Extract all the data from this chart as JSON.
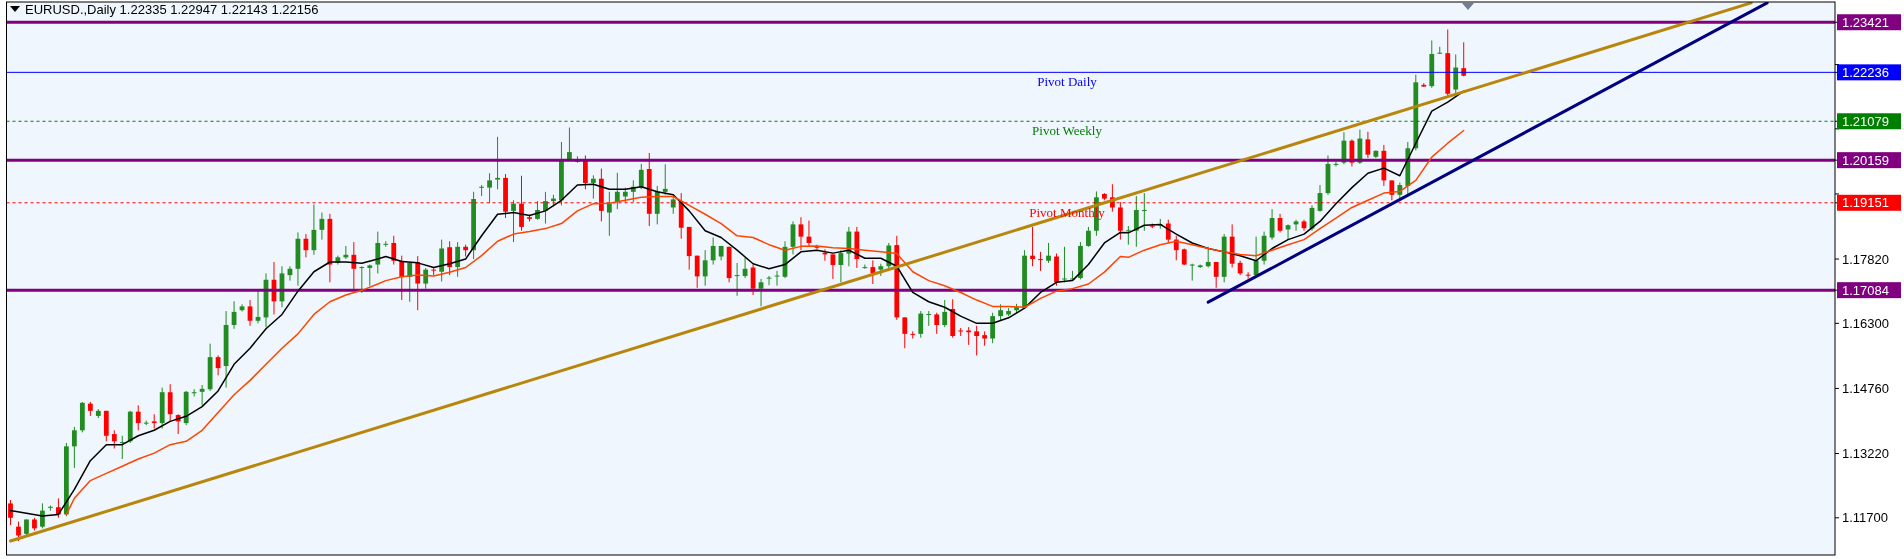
{
  "chart_data": {
    "type": "candlestick",
    "title": "EURUSD.,Daily  1.22335 1.22947 1.22143 1.22156",
    "categories": [
      null,
      null,
      null,
      null,
      null,
      null,
      null,
      null,
      null,
      null,
      null,
      null,
      null,
      null,
      null,
      null,
      null,
      null,
      null,
      null,
      null,
      null,
      null,
      null,
      null,
      null,
      null,
      null,
      null,
      null,
      null,
      null,
      null,
      null,
      null,
      null,
      null,
      null,
      null,
      null,
      null,
      null,
      null,
      null,
      null,
      null,
      null,
      null,
      null,
      null,
      null,
      null,
      null,
      null,
      null,
      null,
      null,
      null,
      null,
      null,
      null,
      null,
      null,
      null,
      null,
      null,
      null,
      null,
      null,
      null,
      null,
      null,
      null,
      null,
      null,
      null,
      null,
      null,
      null,
      null,
      null,
      null,
      null,
      null,
      null,
      null,
      null,
      null,
      null,
      null,
      null,
      null,
      null,
      null,
      null,
      null,
      null,
      null,
      null,
      null,
      null,
      null,
      null,
      null,
      null,
      null,
      null,
      null,
      null,
      null,
      null,
      null,
      null,
      null,
      null,
      null,
      null,
      null,
      null,
      null,
      null,
      null,
      null,
      null,
      null,
      null,
      null,
      null,
      null,
      null,
      null,
      null,
      null,
      null,
      null,
      null,
      null,
      null,
      null,
      null,
      null,
      null,
      null,
      null,
      null,
      null,
      null,
      null,
      null,
      null,
      null,
      null,
      null,
      null,
      null,
      null,
      null,
      null,
      null,
      null,
      null,
      null,
      null,
      null,
      null,
      null,
      null,
      null,
      null,
      null,
      null,
      null,
      null,
      null,
      null,
      null,
      null,
      null,
      null,
      null,
      null,
      null,
      null,
      null,
      null,
      null,
      null,
      null,
      null,
      null,
      null,
      null,
      null,
      null,
      null,
      null,
      null,
      null,
      null,
      null,
      null,
      null,
      null,
      null,
      null,
      null,
      null,
      null,
      null,
      null,
      null,
      null,
      null,
      null,
      null,
      null,
      null,
      null,
      null,
      null,
      null,
      null,
      null,
      null,
      null,
      null,
      null,
      null,
      null
    ],
    "ohlc": [
      [
        1.1204,
        1.1212,
        1.1153,
        1.117
      ],
      [
        1.1149,
        1.1161,
        1.1115,
        1.1128
      ],
      [
        1.1132,
        1.1166,
        1.1128,
        1.1166
      ],
      [
        1.1166,
        1.117,
        1.114,
        1.1145
      ],
      [
        1.1149,
        1.1204,
        1.1145,
        1.1187
      ],
      [
        1.1195,
        1.1199,
        1.1187,
        1.1196
      ],
      [
        1.1195,
        1.1216,
        1.117,
        1.1178
      ],
      [
        1.1178,
        1.1347,
        1.1174,
        1.1339
      ],
      [
        1.1339,
        1.1385,
        1.1288,
        1.1377
      ],
      [
        1.1377,
        1.1444,
        1.1372,
        1.1442
      ],
      [
        1.144,
        1.1444,
        1.1411,
        1.1423
      ],
      [
        1.1411,
        1.1427,
        1.1406,
        1.1423
      ],
      [
        1.1423,
        1.1423,
        1.1351,
        1.1364
      ],
      [
        1.1368,
        1.1377,
        1.1334,
        1.1351
      ],
      [
        1.1347,
        1.1364,
        1.1309,
        1.1349
      ],
      [
        1.1351,
        1.1423,
        1.1347,
        1.1421
      ],
      [
        1.1421,
        1.1436,
        1.1377,
        1.1394
      ],
      [
        1.1394,
        1.14,
        1.1389,
        1.1395
      ],
      [
        1.1398,
        1.1415,
        1.1381,
        1.1394
      ],
      [
        1.1394,
        1.1478,
        1.1381,
        1.1467
      ],
      [
        1.1467,
        1.1486,
        1.1398,
        1.1415
      ],
      [
        1.1413,
        1.1415,
        1.1368,
        1.1398
      ],
      [
        1.1394,
        1.147,
        1.1389,
        1.1468
      ],
      [
        1.1466,
        1.1474,
        1.1457,
        1.1467
      ],
      [
        1.1468,
        1.1484,
        1.1436,
        1.1475
      ],
      [
        1.1474,
        1.1582,
        1.147,
        1.155
      ],
      [
        1.155,
        1.1554,
        1.1507,
        1.1524
      ],
      [
        1.1529,
        1.1659,
        1.1478,
        1.1626
      ],
      [
        1.1626,
        1.1682,
        1.1617,
        1.1657
      ],
      [
        1.1661,
        1.1675,
        1.1658,
        1.167
      ],
      [
        1.167,
        1.1685,
        1.1624,
        1.1636
      ],
      [
        1.1636,
        1.1706,
        1.163,
        1.1645
      ],
      [
        1.1644,
        1.1748,
        1.1621,
        1.1733
      ],
      [
        1.1733,
        1.1775,
        1.1651,
        1.1682
      ],
      [
        1.1682,
        1.1765,
        1.1668,
        1.1748
      ],
      [
        1.1744,
        1.1765,
        1.1731,
        1.1759
      ],
      [
        1.1759,
        1.1845,
        1.1719,
        1.183
      ],
      [
        1.183,
        1.1841,
        1.1786,
        1.1803
      ],
      [
        1.1803,
        1.1911,
        1.1792,
        1.1851
      ],
      [
        1.1851,
        1.1892,
        1.1828,
        1.1877
      ],
      [
        1.1877,
        1.1889,
        1.1727,
        1.1769
      ],
      [
        1.1773,
        1.179,
        1.1769,
        1.1786
      ],
      [
        1.1786,
        1.1813,
        1.1782,
        1.1792
      ],
      [
        1.1792,
        1.1822,
        1.171,
        1.1759
      ],
      [
        1.1762,
        1.1765,
        1.1702,
        1.1763
      ],
      [
        1.1761,
        1.1769,
        1.1719,
        1.1767
      ],
      [
        1.1769,
        1.1847,
        1.1748,
        1.182
      ],
      [
        1.1817,
        1.1824,
        1.1811,
        1.1818
      ],
      [
        1.182,
        1.1837,
        1.1769,
        1.1778
      ],
      [
        1.1778,
        1.179,
        1.1685,
        1.174
      ],
      [
        1.174,
        1.1773,
        1.1681,
        1.1773
      ],
      [
        1.1775,
        1.1789,
        1.1661,
        1.1724
      ],
      [
        1.1724,
        1.1761,
        1.1712,
        1.1757
      ],
      [
        1.1757,
        1.1761,
        1.1744,
        1.1755
      ],
      [
        1.1752,
        1.1828,
        1.1729,
        1.1807
      ],
      [
        1.181,
        1.1824,
        1.1744,
        1.1763
      ],
      [
        1.1763,
        1.1822,
        1.174,
        1.1811
      ],
      [
        1.1811,
        1.1816,
        1.1788,
        1.1803
      ],
      [
        1.1803,
        1.1941,
        1.1782,
        1.1924
      ],
      [
        1.1951,
        1.1957,
        1.1931,
        1.1953
      ],
      [
        1.1951,
        1.1985,
        1.1915,
        1.1968
      ],
      [
        1.197,
        1.2071,
        1.1947,
        1.1974
      ],
      [
        1.1974,
        1.1983,
        1.1879,
        1.1894
      ],
      [
        1.1896,
        1.1921,
        1.1822,
        1.1913
      ],
      [
        1.1913,
        1.1979,
        1.1849,
        1.1858
      ],
      [
        1.1881,
        1.1887,
        1.1871,
        1.1877
      ],
      [
        1.1877,
        1.1919,
        1.1875,
        1.1898
      ],
      [
        1.1896,
        1.1941,
        1.1866,
        1.1919
      ],
      [
        1.1919,
        1.1934,
        1.1906,
        1.1925
      ],
      [
        1.1921,
        1.2059,
        1.1909,
        1.2014
      ],
      [
        1.2018,
        1.2093,
        1.2014,
        1.2035
      ],
      [
        1.2013,
        1.2025,
        1.201,
        1.2014
      ],
      [
        1.2016,
        1.2027,
        1.1947,
        1.1962
      ],
      [
        1.1962,
        1.198,
        1.1925,
        1.1972
      ],
      [
        1.1972,
        1.1996,
        1.1871,
        1.1896
      ],
      [
        1.1892,
        1.1941,
        1.1837,
        1.1913
      ],
      [
        1.1917,
        1.1986,
        1.19,
        1.1941
      ],
      [
        1.193,
        1.1951,
        1.1917,
        1.1941
      ],
      [
        1.1941,
        1.1968,
        1.1917,
        1.1953
      ],
      [
        1.1952,
        1.2007,
        1.1947,
        1.1993
      ],
      [
        1.1995,
        1.2033,
        1.186,
        1.1889
      ],
      [
        1.1889,
        1.1955,
        1.1864,
        1.1941
      ],
      [
        1.1941,
        1.2006,
        1.1934,
        1.1948
      ],
      [
        1.1904,
        1.1931,
        1.1889,
        1.1923
      ],
      [
        1.1917,
        1.1938,
        1.183,
        1.1856
      ],
      [
        1.1858,
        1.1858,
        1.1757,
        1.1789
      ],
      [
        1.179,
        1.179,
        1.1714,
        1.1741
      ],
      [
        1.1741,
        1.1803,
        1.1719,
        1.1779
      ],
      [
        1.1779,
        1.1833,
        1.1769,
        1.1813
      ],
      [
        1.1788,
        1.1813,
        1.1779,
        1.1813
      ],
      [
        1.1811,
        1.1811,
        1.1727,
        1.1737
      ],
      [
        1.1743,
        1.1773,
        1.1695,
        1.1744
      ],
      [
        1.1742,
        1.1786,
        1.1737,
        1.1759
      ],
      [
        1.1762,
        1.1769,
        1.1697,
        1.1712
      ],
      [
        1.1712,
        1.1735,
        1.167,
        1.1727
      ],
      [
        1.1737,
        1.1742,
        1.172,
        1.1738
      ],
      [
        1.1742,
        1.1754,
        1.1719,
        1.1743
      ],
      [
        1.174,
        1.1824,
        1.1737,
        1.1811
      ],
      [
        1.1811,
        1.1871,
        1.1793,
        1.1864
      ],
      [
        1.1864,
        1.1881,
        1.1803,
        1.1835
      ],
      [
        1.1835,
        1.1873,
        1.1811,
        1.182
      ],
      [
        1.1811,
        1.1816,
        1.1805,
        1.181
      ],
      [
        1.1797,
        1.1805,
        1.1778,
        1.1793
      ],
      [
        1.1793,
        1.1793,
        1.1735,
        1.1768
      ],
      [
        1.1768,
        1.1803,
        1.1727,
        1.1796
      ],
      [
        1.1795,
        1.1858,
        1.1765,
        1.1847
      ],
      [
        1.1847,
        1.1858,
        1.1761,
        1.1782
      ],
      [
        1.1762,
        1.1769,
        1.1759,
        1.1763
      ],
      [
        1.1763,
        1.1779,
        1.1723,
        1.1748
      ],
      [
        1.1757,
        1.1771,
        1.1742,
        1.1765
      ],
      [
        1.1765,
        1.182,
        1.1757,
        1.1814
      ],
      [
        1.1815,
        1.1837,
        1.1638,
        1.1644
      ],
      [
        1.1644,
        1.1644,
        1.1571,
        1.1605
      ],
      [
        1.1605,
        1.1611,
        1.1594,
        1.1604
      ],
      [
        1.1605,
        1.1659,
        1.1596,
        1.1653
      ],
      [
        1.1651,
        1.1659,
        1.1624,
        1.1652
      ],
      [
        1.1651,
        1.1655,
        1.1605,
        1.1626
      ],
      [
        1.1626,
        1.1685,
        1.1621,
        1.1657
      ],
      [
        1.1664,
        1.1687,
        1.1596,
        1.16
      ],
      [
        1.1613,
        1.1619,
        1.16,
        1.1612
      ],
      [
        1.1613,
        1.1621,
        1.1579,
        1.1609
      ],
      [
        1.1611,
        1.1624,
        1.1554,
        1.16
      ],
      [
        1.1602,
        1.1611,
        1.1577,
        1.1594
      ],
      [
        1.1594,
        1.1655,
        1.1583,
        1.1647
      ],
      [
        1.1647,
        1.1675,
        1.1636,
        1.1661
      ],
      [
        1.1651,
        1.1666,
        1.1647,
        1.1659
      ],
      [
        1.1661,
        1.1676,
        1.1655,
        1.1668
      ],
      [
        1.1668,
        1.1803,
        1.1664,
        1.179
      ],
      [
        1.179,
        1.1858,
        1.1765,
        1.1782
      ],
      [
        1.1782,
        1.1799,
        1.1754,
        1.1781
      ],
      [
        1.1778,
        1.182,
        1.1773,
        1.179
      ],
      [
        1.1788,
        1.1795,
        1.1719,
        1.1727
      ],
      [
        1.1735,
        1.1811,
        1.1727,
        1.1736
      ],
      [
        1.1735,
        1.1754,
        1.1731,
        1.1736
      ],
      [
        1.1737,
        1.1822,
        1.1734,
        1.1813
      ],
      [
        1.1813,
        1.1858,
        1.1811,
        1.1849
      ],
      [
        1.1849,
        1.1942,
        1.1837,
        1.1928
      ],
      [
        1.1936,
        1.1938,
        1.1921,
        1.1925
      ],
      [
        1.1928,
        1.1959,
        1.1894,
        1.1904
      ],
      [
        1.1904,
        1.1917,
        1.1828,
        1.1849
      ],
      [
        1.1849,
        1.186,
        1.1816,
        1.185
      ],
      [
        1.1849,
        1.1931,
        1.1811,
        1.1898
      ],
      [
        1.1897,
        1.1938,
        1.1849,
        1.1898
      ],
      [
        1.1861,
        1.1866,
        1.1855,
        1.186
      ],
      [
        1.1863,
        1.1877,
        1.1854,
        1.1864
      ],
      [
        1.1866,
        1.1875,
        1.182,
        1.1828
      ],
      [
        1.1828,
        1.1837,
        1.1779,
        1.1803
      ],
      [
        1.1805,
        1.1807,
        1.1768,
        1.1769
      ],
      [
        1.1768,
        1.1771,
        1.1731,
        1.1769
      ],
      [
        1.1763,
        1.1769,
        1.1761,
        1.1767
      ],
      [
        1.1765,
        1.1811,
        1.1762,
        1.1775
      ],
      [
        1.1775,
        1.1775,
        1.1714,
        1.174
      ],
      [
        1.174,
        1.1841,
        1.1727,
        1.1835
      ],
      [
        1.1835,
        1.1864,
        1.1762,
        1.1771
      ],
      [
        1.1773,
        1.1778,
        1.1744,
        1.1748
      ],
      [
        1.1745,
        1.1751,
        1.1736,
        1.1744
      ],
      [
        1.1744,
        1.1835,
        1.174,
        1.1779
      ],
      [
        1.1778,
        1.1847,
        1.1769,
        1.1837
      ],
      [
        1.1833,
        1.19,
        1.1828,
        1.1879
      ],
      [
        1.1879,
        1.1889,
        1.1845,
        1.1849
      ],
      [
        1.1852,
        1.1864,
        1.1827,
        1.1862
      ],
      [
        1.1864,
        1.1875,
        1.1849,
        1.1871
      ],
      [
        1.1871,
        1.1875,
        1.1849,
        1.1855
      ],
      [
        1.1854,
        1.1909,
        1.1849,
        1.1903
      ],
      [
        1.1896,
        1.1957,
        1.1894,
        1.1938
      ],
      [
        1.1938,
        1.2027,
        1.1934,
        1.2007
      ],
      [
        1.2006,
        1.2012,
        1.2001,
        1.2007
      ],
      [
        1.201,
        1.2082,
        1.2006,
        1.2062
      ],
      [
        1.2062,
        1.2065,
        1.2001,
        1.201
      ],
      [
        1.201,
        1.2088,
        1.2007,
        1.2067
      ],
      [
        1.2065,
        1.2083,
        1.2021,
        1.2029
      ],
      [
        1.2024,
        1.2039,
        1.2021,
        1.2038
      ],
      [
        1.2038,
        1.2052,
        1.1955,
        1.1968
      ],
      [
        1.1968,
        1.1968,
        1.1921,
        1.1934
      ],
      [
        1.1934,
        1.1963,
        1.1925,
        1.1957
      ],
      [
        1.1955,
        1.2059,
        1.1934,
        1.2044
      ],
      [
        1.2044,
        1.2218,
        1.2039,
        1.22
      ],
      [
        1.2194,
        1.2198,
        1.2189,
        1.219
      ],
      [
        1.2191,
        1.2299,
        1.2187,
        1.2267
      ],
      [
        1.2268,
        1.2284,
        1.2267,
        1.227
      ],
      [
        1.2269,
        1.2325,
        1.2168,
        1.2173
      ],
      [
        1.2183,
        1.2266,
        1.2174,
        1.2235
      ],
      [
        1.22335,
        1.22947,
        1.22143,
        1.22156
      ],
      null,
      null,
      null,
      null,
      null,
      null,
      null,
      null,
      null,
      null,
      null,
      null,
      null,
      null,
      null,
      null,
      null,
      null,
      null,
      null,
      null,
      null,
      null,
      null,
      null,
      null,
      null,
      null,
      null,
      null,
      null,
      null,
      null,
      null,
      null,
      null,
      null,
      null,
      null,
      null,
      null,
      null,
      null,
      null,
      null,
      null
    ],
    "series": [
      {
        "type": "line",
        "color": "#000000",
        "values": [
          1.1187,
          null,
          null,
          null,
          1.1174,
          null,
          1.1178,
          null,
          1.1237,
          null,
          1.1305,
          null,
          1.1343,
          null,
          1.1343,
          null,
          1.1364,
          null,
          1.1377,
          null,
          1.1398,
          null,
          1.141,
          null,
          1.1433,
          null,
          1.147,
          null,
          1.1533,
          null,
          1.1571,
          null,
          1.1617,
          null,
          1.1651,
          null,
          1.1706,
          null,
          1.1752,
          null,
          1.1775,
          null,
          1.1775,
          null,
          1.1772,
          null,
          1.1782,
          1.1788,
          null,
          1.1776,
          null,
          1.1773,
          null,
          1.1762,
          null,
          1.1771,
          null,
          1.1782,
          null,
          1.1837,
          null,
          1.1888,
          null,
          1.1892,
          null,
          1.1885,
          null,
          1.1896,
          null,
          1.1921,
          null,
          1.1957,
          null,
          1.1959,
          null,
          1.1947,
          null,
          1.1947,
          null,
          1.1953,
          null,
          1.1941,
          null,
          1.1934,
          null,
          1.1896,
          null,
          1.1849,
          null,
          1.1833,
          null,
          1.1803,
          null,
          1.1771,
          null,
          1.1759,
          null,
          1.1769,
          null,
          1.1799,
          null,
          1.1803,
          null,
          1.1796,
          null,
          1.1803,
          null,
          1.1784,
          null,
          1.1784,
          null,
          1.1765,
          null,
          1.1703,
          null,
          1.1681,
          null,
          1.1668,
          null,
          1.1647,
          null,
          1.163,
          null,
          1.163,
          null,
          1.1643,
          null,
          1.1666,
          null,
          1.1703,
          null,
          1.1727,
          null,
          1.1731,
          null,
          1.1769,
          null,
          1.182,
          null,
          1.1845,
          1.1844,
          null,
          1.1862,
          null,
          1.1864,
          null,
          1.1841,
          null,
          1.182,
          null,
          1.1807,
          null,
          1.1799,
          null,
          1.179,
          null,
          1.1778,
          null,
          1.1807,
          null,
          1.1828,
          null,
          1.1841,
          null,
          1.1871,
          null,
          1.1913,
          null,
          1.1951,
          null,
          1.1985,
          null,
          1.1997,
          null,
          1.1979,
          null,
          1.2056,
          null,
          1.2132,
          null,
          1.2153,
          null,
          1.2179,
          null,
          null,
          null,
          null,
          null,
          null,
          null,
          null,
          null,
          null,
          null,
          null,
          null,
          null,
          null,
          null,
          null,
          null,
          null,
          null,
          null,
          null,
          null,
          null,
          null,
          null,
          null,
          null,
          null,
          null,
          null,
          null,
          null,
          null,
          null,
          null,
          null,
          null,
          null,
          null,
          null,
          null,
          null,
          null,
          null,
          null
        ]
      },
      {
        "type": "line",
        "color": "#ff4500",
        "values": [
          null,
          null,
          null,
          null,
          null,
          null,
          null,
          1.1178,
          1.1216,
          null,
          1.1258,
          null,
          1.1275,
          null,
          1.1292,
          null,
          1.1309,
          null,
          1.1323,
          null,
          1.1343,
          null,
          1.1351,
          null,
          1.1377,
          null,
          1.1419,
          null,
          1.1461,
          null,
          1.1495,
          null,
          1.1533,
          null,
          1.1571,
          null,
          1.1605,
          null,
          1.1651,
          null,
          1.1681,
          null,
          1.1697,
          null,
          1.1708,
          null,
          1.1723,
          1.1731,
          null,
          1.174,
          null,
          1.1744,
          null,
          1.1742,
          null,
          1.1751,
          null,
          1.1762,
          null,
          1.179,
          null,
          1.1824,
          null,
          1.1841,
          null,
          1.1847,
          null,
          1.1854,
          null,
          1.1866,
          null,
          1.1896,
          null,
          1.1913,
          null,
          1.1914,
          null,
          1.1921,
          null,
          1.1928,
          null,
          1.193,
          null,
          1.193,
          null,
          1.1909,
          null,
          1.1888,
          null,
          1.1866,
          null,
          1.1837,
          null,
          1.1833,
          null,
          1.1816,
          null,
          1.1803,
          null,
          1.1812,
          null,
          1.1813,
          null,
          1.1809,
          null,
          1.1807,
          null,
          1.1803,
          null,
          1.1799,
          null,
          1.1795,
          null,
          1.1752,
          null,
          1.1731,
          null,
          1.1719,
          null,
          1.1703,
          null,
          1.1685,
          null,
          1.167,
          null,
          1.167,
          null,
          1.1668,
          null,
          1.1689,
          null,
          1.1706,
          null,
          1.1712,
          null,
          1.1723,
          null,
          1.1751,
          null,
          1.1788,
          1.1786,
          null,
          1.1803,
          null,
          1.1816,
          null,
          1.1824,
          null,
          1.1816,
          null,
          1.1807,
          null,
          1.1799,
          null,
          1.1793,
          null,
          1.179,
          null,
          1.1803,
          null,
          1.1816,
          null,
          1.1828,
          null,
          1.1854,
          null,
          1.1879,
          null,
          1.1904,
          null,
          1.1921,
          null,
          1.1938,
          null,
          1.1942,
          null,
          1.1968,
          null,
          1.2023,
          null,
          1.2056,
          null,
          1.2086,
          null,
          null,
          null,
          null,
          null,
          null,
          null,
          null,
          null,
          null,
          null,
          null,
          null,
          null,
          null,
          null,
          null,
          null,
          null,
          null,
          null,
          null,
          null,
          null,
          null,
          null,
          null,
          null,
          null,
          null,
          null,
          null,
          null,
          null,
          null,
          null,
          null,
          null,
          null,
          null,
          null,
          null,
          null,
          null,
          null,
          null
        ]
      },
      {
        "type": "line",
        "color": "#b8860b",
        "values": [
          1.1115,
          null,
          null,
          null,
          null,
          null,
          null,
          null,
          null,
          null,
          null,
          null,
          null,
          null,
          null,
          null,
          null,
          null,
          null,
          null,
          null,
          null,
          null,
          null,
          null,
          null,
          null,
          null,
          null,
          null,
          null,
          null,
          null,
          null,
          null,
          null,
          null,
          null,
          null,
          null,
          null,
          null,
          null,
          null,
          null,
          null,
          null,
          null,
          null,
          null,
          null,
          null,
          null,
          null,
          null,
          null,
          null,
          null,
          null,
          null,
          null,
          null,
          null,
          null,
          null,
          null,
          null,
          null,
          null,
          null,
          null,
          null,
          null,
          null,
          null,
          null,
          null,
          null,
          null,
          null,
          null,
          null,
          null,
          null,
          null,
          null,
          null,
          null,
          null,
          null,
          null,
          null,
          null,
          null,
          null,
          null,
          null,
          null,
          null,
          null,
          null,
          null,
          null,
          null,
          null,
          null,
          null,
          null,
          null,
          null,
          null,
          null,
          null,
          null,
          null,
          null,
          null,
          null,
          null,
          null,
          null,
          null,
          null,
          null,
          null,
          null,
          null,
          null,
          null,
          null,
          null,
          null,
          null,
          null,
          null,
          null,
          null,
          null,
          null,
          null,
          null,
          null,
          null,
          null,
          null,
          null,
          null,
          null,
          null,
          null,
          null,
          null,
          null,
          null,
          null,
          null,
          null,
          null,
          null,
          null,
          null,
          null,
          null,
          null,
          null,
          null,
          null,
          null,
          null,
          null,
          null,
          null,
          null,
          null,
          null,
          null,
          null,
          null,
          null,
          null,
          null,
          null,
          null,
          null,
          null,
          null,
          null,
          null,
          null,
          null,
          null,
          null,
          null,
          null,
          null,
          null,
          null,
          null,
          null,
          null,
          null,
          null,
          null,
          null,
          null,
          null,
          null,
          null,
          null,
          null,
          null,
          null,
          null,
          null,
          null,
          null,
          null,
          null,
          1.2388,
          null,
          null,
          null,
          null,
          null,
          null,
          null,
          null,
          null,
          null
        ]
      },
      {
        "type": "line",
        "color": "#000080",
        "values": [
          null,
          null,
          null,
          null,
          null,
          null,
          null,
          null,
          null,
          null,
          null,
          null,
          null,
          null,
          null,
          null,
          null,
          null,
          null,
          null,
          null,
          null,
          null,
          null,
          null,
          null,
          null,
          null,
          null,
          null,
          null,
          null,
          null,
          null,
          null,
          null,
          null,
          null,
          null,
          null,
          null,
          null,
          null,
          null,
          null,
          null,
          null,
          null,
          null,
          null,
          null,
          null,
          null,
          null,
          null,
          null,
          null,
          null,
          null,
          null,
          null,
          null,
          null,
          null,
          null,
          null,
          null,
          null,
          null,
          null,
          null,
          null,
          null,
          null,
          null,
          null,
          null,
          null,
          null,
          null,
          null,
          null,
          null,
          null,
          null,
          null,
          null,
          null,
          null,
          null,
          null,
          null,
          null,
          null,
          null,
          null,
          null,
          null,
          null,
          null,
          null,
          null,
          null,
          null,
          null,
          null,
          null,
          null,
          null,
          null,
          null,
          null,
          null,
          null,
          null,
          null,
          null,
          null,
          null,
          null,
          null,
          null,
          null,
          null,
          null,
          null,
          null,
          null,
          null,
          null,
          null,
          null,
          null,
          null,
          null,
          null,
          null,
          null,
          null,
          null,
          null,
          null,
          null,
          null,
          null,
          null,
          null,
          null,
          null,
          null,
          1.168,
          null,
          null,
          null,
          null,
          null,
          null,
          null,
          null,
          null,
          null,
          null,
          null,
          null,
          null,
          null,
          null,
          null,
          null,
          null,
          null,
          null,
          null,
          null,
          null,
          null,
          null,
          null,
          null,
          null,
          null,
          null,
          null,
          null,
          null,
          null,
          null,
          null,
          null,
          null,
          null,
          null,
          null,
          null,
          null,
          null,
          null,
          null,
          null,
          null,
          null,
          null,
          null,
          null,
          null,
          null,
          null,
          null,
          null,
          null,
          null,
          null,
          null,
          null,
          null,
          null,
          null,
          null,
          null,
          null,
          1.2388,
          null,
          null,
          null,
          null,
          null,
          null,
          null,
          null
        ]
      }
    ],
    "ylim": [
      1.1082,
      1.239
    ],
    "yticks": [
      {
        "value": 1.117,
        "label": "1.11700"
      },
      {
        "value": 1.1322,
        "label": "1.13220"
      },
      {
        "value": 1.1476,
        "label": "1.14760"
      },
      {
        "value": 1.163,
        "label": "1.16300"
      },
      {
        "value": 1.1782,
        "label": "1.17820"
      },
      {
        "value": 1.1936,
        "label": null
      },
      {
        "value": 1.209,
        "label": null
      },
      {
        "value": 1.2242,
        "label": null
      },
      {
        "value": 1.23421,
        "label": "1.23421"
      },
      {
        "value": 1.22236,
        "label": "1.22236"
      },
      {
        "value": 1.21079,
        "label": "1.21079"
      },
      {
        "value": 1.20159,
        "label": "1.20159"
      },
      {
        "value": 1.19151,
        "label": "1.19151"
      },
      {
        "value": 1.17084,
        "label": "1.17084"
      }
    ],
    "ref_lines": [
      {
        "axis": "y",
        "value": 1.23421,
        "color": "#800080",
        "line_style": "solid"
      },
      {
        "axis": "y",
        "value": 1.22236,
        "label": "Pivot Daily",
        "color": "#0000ff",
        "line_style": "solid"
      },
      {
        "axis": "y",
        "value": 1.21079,
        "label": "Pivot Weekly",
        "color": "#008000",
        "line_style": "dashed"
      },
      {
        "axis": "y",
        "value": 1.20159,
        "color": "#800080",
        "line_style": "solid"
      },
      {
        "axis": "y",
        "value": 1.19151,
        "label": "Pivot Monthly",
        "color": "#ff0000",
        "line_style": "dashed"
      },
      {
        "axis": "y",
        "value": 1.17084,
        "color": "#800080",
        "line_style": "solid"
      }
    ]
  }
}
